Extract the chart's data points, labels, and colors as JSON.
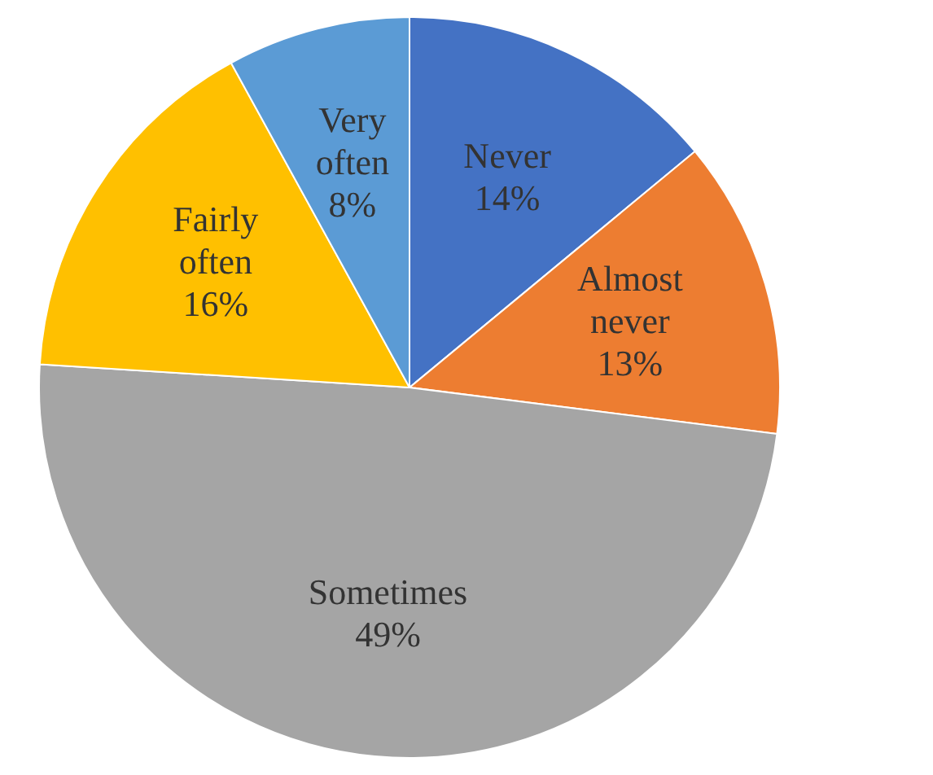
{
  "chart_data": {
    "type": "pie",
    "categories": [
      "Never",
      "Almost never",
      "Sometimes",
      "Fairly often",
      "Very often"
    ],
    "values": [
      14,
      13,
      49,
      16,
      8
    ],
    "value_labels": [
      "14%",
      "13%",
      "49%",
      "16%",
      "8%"
    ],
    "colors": [
      "#4472c4",
      "#ed7d31",
      "#a5a5a5",
      "#ffc000",
      "#5b9bd5"
    ]
  }
}
